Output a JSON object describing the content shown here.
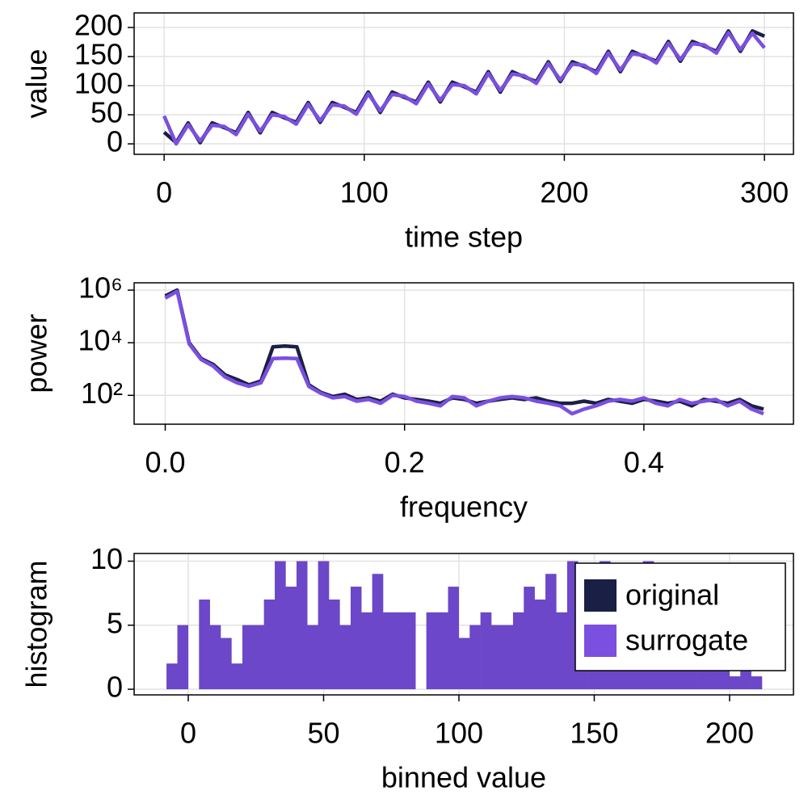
{
  "chart_data": [
    {
      "type": "line",
      "xlabel": "time step",
      "ylabel": "value",
      "x": [
        0,
        6,
        12,
        18,
        24,
        30,
        36,
        42,
        48,
        54,
        60,
        66,
        72,
        78,
        84,
        90,
        96,
        102,
        108,
        114,
        120,
        126,
        132,
        138,
        144,
        150,
        156,
        162,
        168,
        174,
        180,
        186,
        192,
        198,
        204,
        210,
        216,
        222,
        228,
        234,
        240,
        246,
        252,
        258,
        264,
        270,
        276,
        282,
        288,
        294,
        300
      ],
      "series": [
        {
          "name": "original",
          "color": "#1a1f45",
          "values": [
            20,
            2,
            36,
            2,
            36,
            28,
            19,
            54,
            19,
            54,
            45,
            37,
            71,
            37,
            71,
            63,
            54,
            89,
            54,
            89,
            80,
            72,
            106,
            72,
            106,
            98,
            89,
            124,
            89,
            124,
            115,
            107,
            141,
            107,
            141,
            133,
            124,
            159,
            124,
            159,
            150,
            142,
            176,
            142,
            176,
            168,
            159,
            194,
            159,
            194,
            185
          ]
        },
        {
          "name": "surrogate",
          "color": "#7b4fe0",
          "values": [
            48,
            0,
            33,
            5,
            32,
            30,
            16,
            51,
            22,
            50,
            47,
            34,
            68,
            40,
            67,
            65,
            51,
            86,
            57,
            85,
            82,
            69,
            103,
            75,
            102,
            100,
            86,
            121,
            92,
            120,
            117,
            104,
            138,
            110,
            137,
            135,
            121,
            156,
            127,
            155,
            152,
            139,
            173,
            145,
            172,
            170,
            156,
            191,
            162,
            190,
            165
          ]
        }
      ],
      "xlim": [
        -15,
        314.5
      ],
      "ylim": [
        -18,
        225
      ],
      "xticks": [
        0,
        100,
        200,
        300
      ],
      "yticks": [
        0,
        50,
        100,
        150,
        200
      ],
      "grid": true
    },
    {
      "type": "line",
      "xlabel": "frequency",
      "ylabel": "power",
      "yscale": "log",
      "x": [
        0,
        0.01,
        0.02,
        0.03,
        0.04,
        0.05,
        0.06,
        0.07,
        0.08,
        0.09,
        0.1,
        0.11,
        0.12,
        0.13,
        0.14,
        0.15,
        0.16,
        0.17,
        0.18,
        0.19,
        0.2,
        0.21,
        0.22,
        0.23,
        0.24,
        0.25,
        0.26,
        0.27,
        0.28,
        0.29,
        0.3,
        0.31,
        0.32,
        0.33,
        0.34,
        0.35,
        0.36,
        0.37,
        0.38,
        0.39,
        0.4,
        0.41,
        0.42,
        0.43,
        0.44,
        0.45,
        0.46,
        0.47,
        0.48,
        0.49,
        0.5
      ],
      "series": [
        {
          "name": "original",
          "color": "#1a1f45",
          "values": [
            600000,
            1000000,
            10000,
            2500,
            1500,
            600,
            400,
            250,
            350,
            7000,
            7500,
            7000,
            250,
            130,
            90,
            110,
            70,
            80,
            60,
            110,
            80,
            70,
            60,
            50,
            80,
            70,
            50,
            60,
            70,
            80,
            70,
            80,
            60,
            50,
            50,
            60,
            50,
            70,
            60,
            50,
            70,
            60,
            50,
            60,
            40,
            70,
            60,
            50,
            70,
            40,
            30
          ]
        },
        {
          "name": "surrogate",
          "color": "#7b4fe0",
          "values": [
            500000,
            900000,
            9000,
            2300,
            1300,
            500,
            300,
            220,
            300,
            2500,
            2600,
            2500,
            220,
            120,
            80,
            90,
            60,
            70,
            50,
            100,
            90,
            60,
            50,
            40,
            90,
            80,
            40,
            60,
            80,
            90,
            80,
            60,
            50,
            40,
            20,
            30,
            40,
            60,
            70,
            60,
            80,
            50,
            40,
            70,
            50,
            60,
            70,
            40,
            60,
            30,
            20
          ]
        }
      ],
      "xlim": [
        -0.026,
        0.525
      ],
      "ylim": [
        8,
        1900000
      ],
      "xticks": [
        {
          "value": 0,
          "label": "0.0"
        },
        0.2,
        0.4
      ],
      "yticks": [
        {
          "value": 100,
          "label": "10²"
        },
        {
          "value": 10000,
          "label": "10⁴"
        },
        {
          "value": 1000000,
          "label": "10⁶"
        }
      ],
      "grid": true
    },
    {
      "type": "histogram",
      "xlabel": "binned value",
      "ylabel": "histogram",
      "bins": [
        -8,
        -4,
        0,
        4,
        8,
        12,
        16,
        20,
        24,
        28,
        32,
        36,
        40,
        44,
        48,
        52,
        56,
        60,
        64,
        68,
        72,
        76,
        80,
        84,
        88,
        92,
        96,
        100,
        104,
        108,
        112,
        116,
        120,
        124,
        128,
        132,
        136,
        140,
        144,
        148,
        152,
        156,
        160,
        164,
        168,
        172,
        176,
        180,
        184,
        188,
        192,
        196,
        200,
        204,
        208,
        212
      ],
      "series": [
        {
          "name": "original",
          "color": "#1a1f45",
          "values": [
            2,
            5,
            0,
            7,
            5,
            4,
            2,
            5,
            5,
            7,
            10,
            8,
            10,
            5,
            10,
            7,
            5,
            8,
            6,
            9,
            6,
            6,
            6,
            0,
            6,
            6,
            8,
            4,
            5,
            6,
            5,
            5,
            6,
            8,
            7,
            9,
            6,
            10,
            6,
            5,
            10,
            6,
            9,
            9,
            10,
            6,
            9,
            7,
            6,
            9,
            5,
            4,
            1,
            5,
            1
          ]
        },
        {
          "name": "surrogate",
          "color": "#7b4fe0",
          "values": [
            2,
            5,
            0,
            7,
            5,
            4,
            2,
            5,
            5,
            7,
            10,
            8,
            10,
            5,
            10,
            7,
            5,
            8,
            6,
            9,
            6,
            6,
            6,
            0,
            6,
            6,
            8,
            4,
            5,
            6,
            5,
            5,
            6,
            8,
            7,
            9,
            6,
            10,
            6,
            5,
            10,
            6,
            9,
            9,
            10,
            6,
            9,
            7,
            6,
            9,
            5,
            4,
            1,
            5,
            1
          ]
        }
      ],
      "xlim": [
        -20,
        223.6
      ],
      "ylim": [
        -0.44,
        10.6
      ],
      "xticks": [
        0,
        50,
        100,
        150,
        200
      ],
      "yticks": [
        0,
        5,
        10
      ],
      "grid": true,
      "legend": "top-right"
    }
  ]
}
